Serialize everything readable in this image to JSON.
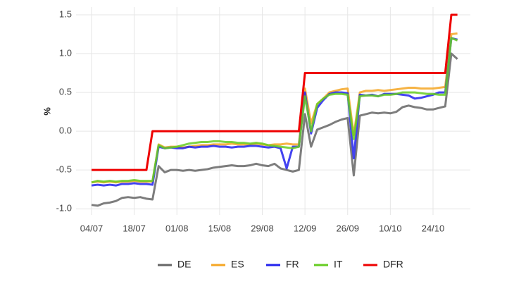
{
  "chart_data": {
    "type": "line",
    "y_label": "%",
    "categories": [
      "04/07",
      null,
      null,
      null,
      null,
      null,
      null,
      "18/07",
      null,
      null,
      null,
      null,
      null,
      null,
      "01/08",
      null,
      null,
      null,
      null,
      null,
      null,
      "15/08",
      null,
      null,
      null,
      null,
      null,
      null,
      "29/08",
      null,
      null,
      null,
      null,
      null,
      null,
      "12/09",
      null,
      null,
      null,
      null,
      null,
      null,
      "26/09",
      null,
      null,
      null,
      null,
      null,
      null,
      "10/10",
      null,
      null,
      null,
      null,
      null,
      null,
      "24/10",
      null,
      null,
      null,
      null
    ],
    "series": [
      {
        "name": "DE",
        "color": "#666666",
        "values": [
          -0.95,
          -0.96,
          -0.93,
          -0.92,
          -0.9,
          -0.86,
          -0.85,
          -0.86,
          -0.85,
          -0.87,
          -0.88,
          -0.45,
          -0.53,
          -0.5,
          -0.5,
          -0.51,
          -0.5,
          -0.51,
          -0.5,
          -0.49,
          -0.47,
          -0.46,
          -0.45,
          -0.44,
          -0.45,
          -0.45,
          -0.44,
          -0.42,
          -0.44,
          -0.45,
          -0.42,
          -0.48,
          -0.5,
          -0.52,
          -0.5,
          0.22,
          -0.2,
          0.02,
          0.05,
          0.08,
          0.12,
          0.15,
          0.17,
          -0.57,
          0.2,
          0.22,
          0.24,
          0.23,
          0.24,
          0.23,
          0.25,
          0.31,
          0.33,
          0.31,
          0.3,
          0.28,
          0.28,
          0.3,
          0.32,
          1.0,
          0.93
        ]
      },
      {
        "name": "ES",
        "color": "#f5a623",
        "values": [
          -0.66,
          -0.65,
          -0.66,
          -0.65,
          -0.66,
          -0.65,
          -0.65,
          -0.64,
          -0.65,
          -0.65,
          -0.65,
          -0.17,
          -0.21,
          -0.2,
          -0.2,
          -0.21,
          -0.2,
          -0.19,
          -0.18,
          -0.18,
          -0.17,
          -0.17,
          -0.17,
          -0.16,
          -0.17,
          -0.17,
          -0.17,
          -0.16,
          -0.17,
          -0.18,
          -0.17,
          -0.17,
          -0.16,
          -0.17,
          -0.17,
          0.55,
          0.1,
          0.35,
          0.42,
          0.5,
          0.52,
          0.54,
          0.55,
          -0.05,
          0.5,
          0.52,
          0.52,
          0.53,
          0.52,
          0.53,
          0.54,
          0.55,
          0.56,
          0.56,
          0.55,
          0.55,
          0.55,
          0.56,
          0.57,
          1.25,
          1.26
        ]
      },
      {
        "name": "FR",
        "color": "#2222ee",
        "values": [
          -0.7,
          -0.69,
          -0.7,
          -0.69,
          -0.7,
          -0.68,
          -0.68,
          -0.67,
          -0.68,
          -0.68,
          -0.69,
          -0.2,
          -0.22,
          -0.21,
          -0.22,
          -0.22,
          -0.2,
          -0.21,
          -0.2,
          -0.2,
          -0.19,
          -0.2,
          -0.2,
          -0.21,
          -0.2,
          -0.2,
          -0.19,
          -0.19,
          -0.2,
          -0.21,
          -0.2,
          -0.22,
          -0.48,
          -0.2,
          -0.2,
          0.5,
          -0.03,
          0.3,
          0.4,
          0.48,
          0.5,
          0.5,
          0.49,
          -0.35,
          0.47,
          0.46,
          0.47,
          0.45,
          0.48,
          0.48,
          0.48,
          0.47,
          0.46,
          0.42,
          0.43,
          0.45,
          0.47,
          0.5,
          0.5,
          1.2,
          1.18
        ]
      },
      {
        "name": "IT",
        "color": "#66cc22",
        "values": [
          -0.66,
          -0.64,
          -0.65,
          -0.64,
          -0.65,
          -0.64,
          -0.64,
          -0.63,
          -0.64,
          -0.64,
          -0.64,
          -0.18,
          -0.22,
          -0.21,
          -0.2,
          -0.18,
          -0.16,
          -0.15,
          -0.14,
          -0.14,
          -0.13,
          -0.13,
          -0.14,
          -0.14,
          -0.15,
          -0.15,
          -0.16,
          -0.15,
          -0.16,
          -0.18,
          -0.19,
          -0.2,
          -0.21,
          -0.22,
          -0.2,
          0.45,
          0.0,
          0.35,
          0.42,
          0.47,
          0.48,
          0.48,
          0.47,
          -0.1,
          0.45,
          0.46,
          0.46,
          0.45,
          0.47,
          0.47,
          0.48,
          0.5,
          0.5,
          0.5,
          0.49,
          0.48,
          0.48,
          0.47,
          0.47,
          1.2,
          1.17
        ]
      },
      {
        "name": "DFR",
        "color": "#ee0000",
        "values": [
          -0.5,
          -0.5,
          -0.5,
          -0.5,
          -0.5,
          -0.5,
          -0.5,
          -0.5,
          -0.5,
          -0.5,
          0,
          0,
          0,
          0,
          0,
          0,
          0,
          0,
          0,
          0,
          0,
          0,
          0,
          0,
          0,
          0,
          0,
          0,
          0,
          0,
          0,
          0,
          0,
          0,
          0,
          0.75,
          0.75,
          0.75,
          0.75,
          0.75,
          0.75,
          0.75,
          0.75,
          0.75,
          0.75,
          0.75,
          0.75,
          0.75,
          0.75,
          0.75,
          0.75,
          0.75,
          0.75,
          0.75,
          0.75,
          0.75,
          0.75,
          0.75,
          0.75,
          1.5,
          1.5
        ]
      }
    ],
    "ylim": [
      -1.08,
      1.6
    ],
    "yticks": [
      {
        "value": -1,
        "label": "-1.0"
      },
      -0.5,
      {
        "value": 0,
        "label": "0.0"
      },
      0.5,
      {
        "value": 1,
        "label": "1.0"
      },
      1.5
    ],
    "grid": true,
    "legend_position": "bottom"
  }
}
